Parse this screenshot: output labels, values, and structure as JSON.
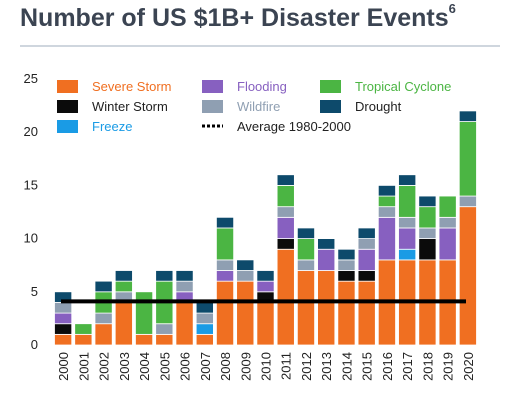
{
  "title": {
    "text": "Number of US $1B+ Disaster Events",
    "footnote_marker": "6"
  },
  "chart_data": {
    "type": "bar",
    "stacked": true,
    "title": "Number of US $1B+ Disaster Events",
    "xlabel": "",
    "ylabel": "",
    "ylim": [
      0,
      25
    ],
    "yticks": [
      0,
      5,
      10,
      15,
      20,
      25
    ],
    "grid": false,
    "legend_position": "top",
    "categories": [
      "2000",
      "2001",
      "2002",
      "2003",
      "2004",
      "2005",
      "2006",
      "2007",
      "2008",
      "2009",
      "2010",
      "2011",
      "2012",
      "2013",
      "2014",
      "2015",
      "2016",
      "2017",
      "2018",
      "2019",
      "2020"
    ],
    "series": [
      {
        "name": "Severe Storm",
        "color": "#f06f21",
        "label_color": "#f06f21",
        "values": [
          1,
          1,
          2,
          4,
          1,
          1,
          4,
          1,
          6,
          6,
          4,
          9,
          7,
          7,
          6,
          6,
          8,
          8,
          8,
          8,
          13
        ]
      },
      {
        "name": "Winter Storm",
        "color": "#0b0b0b",
        "label_color": "#222222",
        "values": [
          1,
          0,
          0,
          0,
          0,
          0,
          0,
          0,
          0,
          0,
          1,
          1,
          0,
          0,
          1,
          1,
          0,
          0,
          2,
          0,
          0
        ]
      },
      {
        "name": "Freeze",
        "color": "#1a9be5",
        "label_color": "#1a9be5",
        "values": [
          0,
          0,
          0,
          0,
          0,
          0,
          0,
          1,
          0,
          0,
          0,
          0,
          0,
          0,
          0,
          0,
          0,
          1,
          0,
          0,
          0
        ]
      },
      {
        "name": "Flooding",
        "color": "#8760c0",
        "label_color": "#8760c0",
        "values": [
          1,
          0,
          0,
          0,
          0,
          0,
          1,
          0,
          1,
          0,
          1,
          2,
          0,
          2,
          0,
          2,
          4,
          2,
          0,
          3,
          0
        ]
      },
      {
        "name": "Wildfire",
        "color": "#8f9fb2",
        "label_color": "#8f9fb2",
        "values": [
          1,
          0,
          1,
          1,
          0,
          1,
          1,
          1,
          1,
          1,
          0,
          1,
          1,
          0,
          1,
          1,
          1,
          1,
          1,
          1,
          1
        ]
      },
      {
        "name": "Tropical Cyclone",
        "color": "#4bb543",
        "label_color": "#4bb543",
        "values": [
          0,
          1,
          2,
          1,
          4,
          4,
          0,
          0,
          3,
          0,
          0,
          2,
          2,
          0,
          0,
          0,
          1,
          3,
          2,
          2,
          7
        ]
      },
      {
        "name": "Drought",
        "color": "#0d4a6b",
        "label_color": "#222222",
        "values": [
          1,
          0,
          1,
          1,
          0,
          1,
          1,
          1,
          1,
          1,
          1,
          1,
          1,
          1,
          1,
          1,
          1,
          1,
          1,
          0,
          1
        ]
      }
    ],
    "average_line": {
      "label": "Average 1980-2000",
      "value": 4.1,
      "color": "#000000",
      "style": "dotted"
    }
  }
}
